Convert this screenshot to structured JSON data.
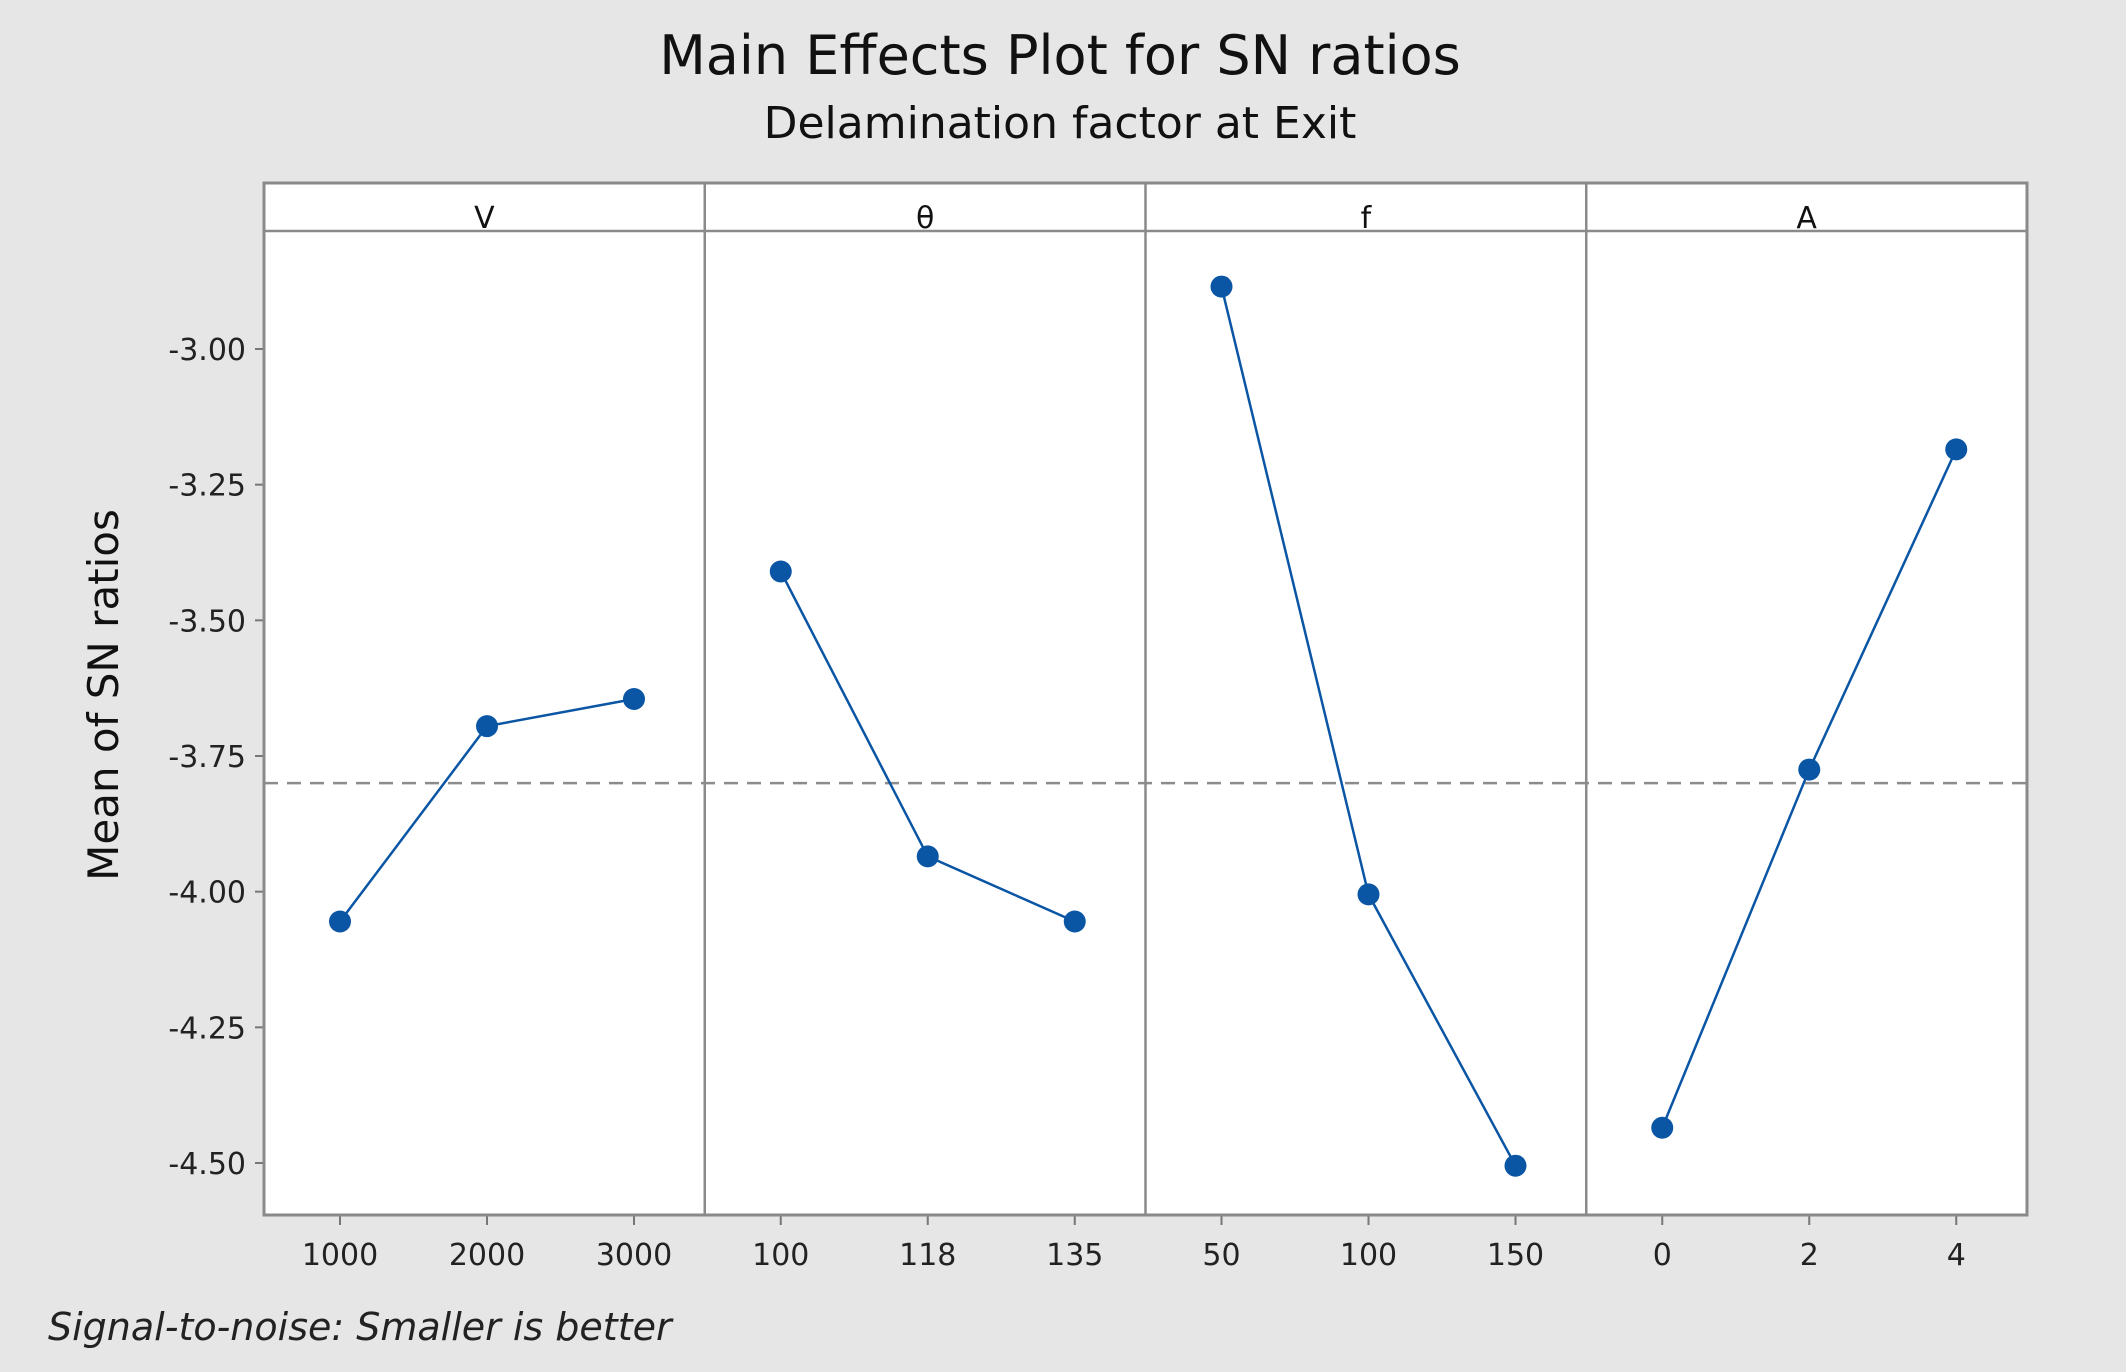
{
  "chart_data": {
    "type": "line",
    "title": "Main Effects Plot for SN ratios",
    "subtitle": "Delamination factor at Exit",
    "ylabel": "Mean of SN ratios",
    "ylim": [
      -4.6,
      -2.8
    ],
    "yticks": [
      -3.0,
      -3.25,
      -3.5,
      -3.75,
      -4.0,
      -4.25,
      -4.5
    ],
    "ytick_labels": [
      "-3.00",
      "-3.25",
      "-3.50",
      "-3.75",
      "-4.00",
      "-4.25",
      "-4.50"
    ],
    "reference_line": -3.8,
    "footnote": "Signal-to-noise: Smaller is better",
    "series_color": "#0b56a4",
    "panels": [
      {
        "factor": "V",
        "levels": [
          "1000",
          "2000",
          "3000"
        ],
        "values": [
          -4.055,
          -3.695,
          -3.645
        ]
      },
      {
        "factor": "θ",
        "levels": [
          "100",
          "118",
          "135"
        ],
        "values": [
          -3.41,
          -3.935,
          -4.055
        ]
      },
      {
        "factor": "f",
        "levels": [
          "50",
          "100",
          "150"
        ],
        "values": [
          -2.885,
          -4.005,
          -4.505
        ]
      },
      {
        "factor": "A",
        "levels": [
          "0",
          "2",
          "4"
        ],
        "values": [
          -4.435,
          -3.775,
          -3.185
        ]
      }
    ]
  }
}
